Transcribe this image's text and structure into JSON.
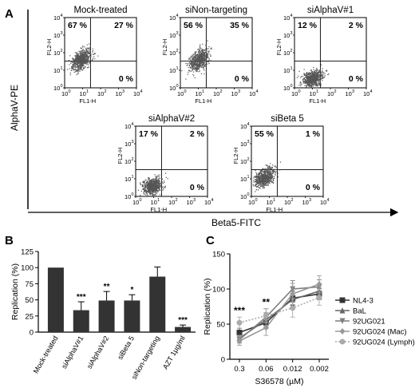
{
  "panels": {
    "a_label": "A",
    "b_label": "B",
    "c_label": "C"
  },
  "flow_axes": {
    "y_title": "AlphaV-PE",
    "x_title": "Beta5-FITC",
    "fl2_label": "FL2-H",
    "fl1_label": "FL1-H",
    "tick_base": "10",
    "tick_exponents": [
      "0",
      "1",
      "2",
      "3",
      "4"
    ]
  },
  "chart_data": [
    {
      "type": "scatter",
      "panel": "A",
      "subtype": "flow-cytometry-quadrant",
      "xlabel": "FL1-H",
      "ylabel": "FL2-H",
      "scale": "log",
      "xlim": [
        1,
        10000
      ],
      "ylim": [
        1,
        10000
      ],
      "plots": [
        {
          "title": "Mock-treated",
          "quadrants": {
            "upper_left": "67 %",
            "upper_right": "27 %",
            "lower_right": "0 %"
          },
          "cloud_center": [
            0.9,
            1.6
          ],
          "cloud_elongation": 1.0
        },
        {
          "title": "siNon-targeting",
          "quadrants": {
            "upper_left": "56 %",
            "upper_right": "35 %",
            "lower_right": "0 %"
          },
          "cloud_center": [
            1.0,
            1.6
          ],
          "cloud_elongation": 1.0
        },
        {
          "title": "siAlphaV#1",
          "quadrants": {
            "upper_left": "12 %",
            "upper_right": "2 %",
            "lower_right": "0 %"
          },
          "cloud_center": [
            1.0,
            0.55
          ],
          "cloud_elongation": 0.6
        },
        {
          "title": "siAlphaV#2",
          "quadrants": {
            "upper_left": "17 %",
            "upper_right": "2 %",
            "lower_right": "0 %"
          },
          "cloud_center": [
            0.9,
            0.6
          ],
          "cloud_elongation": 0.6
        },
        {
          "title": "siBeta 5",
          "quadrants": {
            "upper_left": "55 %",
            "upper_right": "1 %",
            "lower_right": "0 %"
          },
          "cloud_center": [
            0.7,
            1.1
          ],
          "cloud_elongation": 0.8
        }
      ]
    },
    {
      "type": "bar",
      "panel": "B",
      "ylabel": "Replication (%)",
      "ylim": [
        0,
        125
      ],
      "yticks": [
        "0",
        "25",
        "50",
        "75",
        "100",
        "125"
      ],
      "categories": [
        "Mock-treated",
        "siAlphaV#1",
        "siAlphaV#2",
        "siBeta 5",
        "siNon-targeting",
        "AZT 1µg/ml"
      ],
      "values": [
        100,
        34,
        49,
        49,
        86,
        8
      ],
      "errors": [
        0,
        13,
        14,
        9,
        15,
        3
      ],
      "significance": [
        "",
        "***",
        "**",
        "*",
        "",
        "***"
      ]
    },
    {
      "type": "line",
      "panel": "C",
      "xlabel": "S36578 (µM)",
      "ylabel": "Replication (%)",
      "x": [
        "0.3",
        "0.06",
        "0.012",
        "0.002"
      ],
      "ylim": [
        0,
        150
      ],
      "yticks": [
        "0",
        "50",
        "100",
        "150"
      ],
      "significance": [
        "***",
        "**",
        "",
        ""
      ],
      "series": [
        {
          "name": "NL4-3",
          "values": [
            38,
            52,
            87,
            93
          ],
          "errors": [
            6,
            8,
            10,
            8
          ],
          "color": "#333333",
          "marker": "square",
          "dash": false
        },
        {
          "name": "BaL",
          "values": [
            30,
            56,
            85,
            97
          ],
          "errors": [
            5,
            10,
            12,
            9
          ],
          "color": "#666666",
          "marker": "triangle-up",
          "dash": false
        },
        {
          "name": "92UG021",
          "values": [
            28,
            60,
            100,
            103
          ],
          "errors": [
            5,
            12,
            12,
            10
          ],
          "color": "#7f7f7f",
          "marker": "triangle-down",
          "dash": false
        },
        {
          "name": "92UG024 (Mac)",
          "values": [
            26,
            45,
            93,
            107
          ],
          "errors": [
            6,
            11,
            15,
            12
          ],
          "color": "#999999",
          "marker": "diamond",
          "dash": false
        },
        {
          "name": "92UG024 (Lymph)",
          "values": [
            52,
            62,
            73,
            88
          ],
          "errors": [
            8,
            10,
            13,
            11
          ],
          "color": "#aaaaaa",
          "marker": "circle",
          "dash": true
        }
      ]
    }
  ]
}
